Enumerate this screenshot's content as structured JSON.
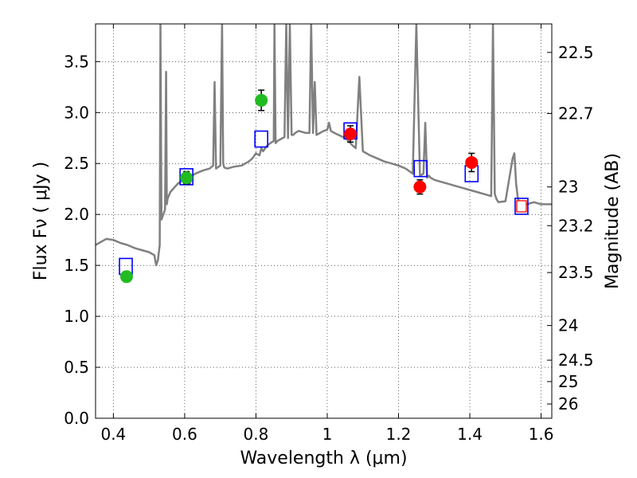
{
  "chart_data": {
    "type": "scatter",
    "xlabel": "Wavelength  λ (μm)",
    "ylabel": "Flux  Fν  ( μJy )",
    "ylabel_right": "Magnitude (AB)",
    "xlim": [
      0.35,
      1.63
    ],
    "ylim": [
      0.0,
      3.87
    ],
    "grid": true,
    "x_ticks": [
      0.4,
      0.6,
      0.8,
      1.0,
      1.2,
      1.4,
      1.6
    ],
    "x_tick_labels": [
      "0.4",
      "0.6",
      "0.8",
      "1",
      "1.2",
      "1.4",
      "1.6"
    ],
    "y_ticks": [
      0.0,
      0.5,
      1.0,
      1.5,
      2.0,
      2.5,
      3.0,
      3.5
    ],
    "y_tick_labels": [
      "0.0",
      "0.5",
      "1.0",
      "1.5",
      "2.0",
      "2.5",
      "3.0",
      "3.5"
    ],
    "right_ticks": [
      {
        "label": "22.5",
        "flux": 3.59
      },
      {
        "label": "22.7",
        "flux": 2.99
      },
      {
        "label": "23",
        "flux": 2.27
      },
      {
        "label": "23.2",
        "flux": 1.89
      },
      {
        "label": "23.5",
        "flux": 1.43
      },
      {
        "label": "24",
        "flux": 0.91
      },
      {
        "label": "24.5",
        "flux": 0.57
      },
      {
        "label": "25",
        "flux": 0.36
      },
      {
        "label": "26",
        "flux": 0.14
      }
    ],
    "series": [
      {
        "kind": "line",
        "color": "#808080",
        "x": [
          0.35,
          0.37,
          0.38,
          0.4,
          0.42,
          0.44,
          0.46,
          0.48,
          0.5,
          0.515,
          0.52,
          0.525,
          0.53,
          0.532,
          0.535,
          0.54,
          0.545,
          0.548,
          0.55,
          0.552,
          0.555,
          0.56,
          0.58,
          0.6,
          0.61,
          0.615,
          0.62,
          0.63,
          0.65,
          0.67,
          0.68,
          0.684,
          0.688,
          0.7,
          0.705,
          0.708,
          0.711,
          0.72,
          0.74,
          0.76,
          0.78,
          0.79,
          0.8,
          0.81,
          0.815,
          0.82,
          0.83,
          0.84,
          0.85,
          0.852,
          0.855,
          0.86,
          0.87,
          0.88,
          0.885,
          0.89,
          0.895,
          0.9,
          0.905,
          0.91,
          0.92,
          0.94,
          0.95,
          0.955,
          0.96,
          0.965,
          0.97,
          0.98,
          0.99,
          1.0,
          1.005,
          1.01,
          1.02,
          1.05,
          1.06,
          1.07,
          1.08,
          1.09,
          1.1,
          1.12,
          1.14,
          1.16,
          1.18,
          1.2,
          1.22,
          1.24,
          1.25,
          1.26,
          1.27,
          1.275,
          1.28,
          1.285,
          1.29,
          1.3,
          1.32,
          1.34,
          1.36,
          1.38,
          1.4,
          1.42,
          1.44,
          1.46,
          1.465,
          1.47,
          1.475,
          1.48,
          1.5,
          1.52,
          1.525,
          1.53,
          1.535,
          1.54,
          1.56,
          1.58,
          1.6,
          1.63
        ],
        "y": [
          1.7,
          1.74,
          1.76,
          1.75,
          1.72,
          1.7,
          1.67,
          1.65,
          1.63,
          1.6,
          1.5,
          1.55,
          1.7,
          3.87,
          1.95,
          2.0,
          2.05,
          3.4,
          2.1,
          2.15,
          2.18,
          2.22,
          2.3,
          2.35,
          2.42,
          2.3,
          2.38,
          2.4,
          2.43,
          2.45,
          2.48,
          3.3,
          2.45,
          2.48,
          3.87,
          2.5,
          2.46,
          2.45,
          2.47,
          2.48,
          2.52,
          2.55,
          2.6,
          2.58,
          2.65,
          2.62,
          2.67,
          2.7,
          2.72,
          3.87,
          2.7,
          2.72,
          2.74,
          2.76,
          3.87,
          2.75,
          3.87,
          2.78,
          2.78,
          2.8,
          2.82,
          2.8,
          2.8,
          3.87,
          2.8,
          3.3,
          2.78,
          2.8,
          2.82,
          2.83,
          2.9,
          2.82,
          2.8,
          2.75,
          2.72,
          2.68,
          2.65,
          3.35,
          2.62,
          2.58,
          2.55,
          2.52,
          2.5,
          2.48,
          2.45,
          2.4,
          3.87,
          2.38,
          2.4,
          2.9,
          2.36,
          2.38,
          2.36,
          2.34,
          2.32,
          2.3,
          2.28,
          2.26,
          2.24,
          2.22,
          2.2,
          2.18,
          3.87,
          2.2,
          2.15,
          2.12,
          2.13,
          2.55,
          2.6,
          2.3,
          2.15,
          2.12,
          2.1,
          2.12,
          2.1,
          2.1
        ]
      },
      {
        "kind": "model_photometry",
        "color": "#0000ff",
        "marker": "open-square",
        "x": [
          0.435,
          0.605,
          0.815,
          1.065,
          1.262,
          1.405,
          1.545
        ],
        "y": [
          1.49,
          2.37,
          2.74,
          2.82,
          2.45,
          2.4,
          2.08
        ]
      },
      {
        "kind": "observed",
        "color": "#22bb22",
        "marker": "filled-circle",
        "x": [
          0.437,
          0.605,
          0.815
        ],
        "y": [
          1.39,
          2.36,
          3.12
        ],
        "err": [
          0.05,
          0.06,
          0.1
        ]
      },
      {
        "kind": "observed",
        "color": "#ff0000",
        "marker": "filled-circle",
        "x": [
          1.065,
          1.26,
          1.405
        ],
        "y": [
          2.79,
          2.27,
          2.51
        ],
        "err": [
          0.08,
          0.07,
          0.09
        ]
      },
      {
        "kind": "observed-open",
        "color": "#ff0000",
        "marker": "open-square",
        "x": [
          1.545
        ],
        "y": [
          2.08
        ],
        "err": [
          0.0
        ]
      }
    ]
  }
}
